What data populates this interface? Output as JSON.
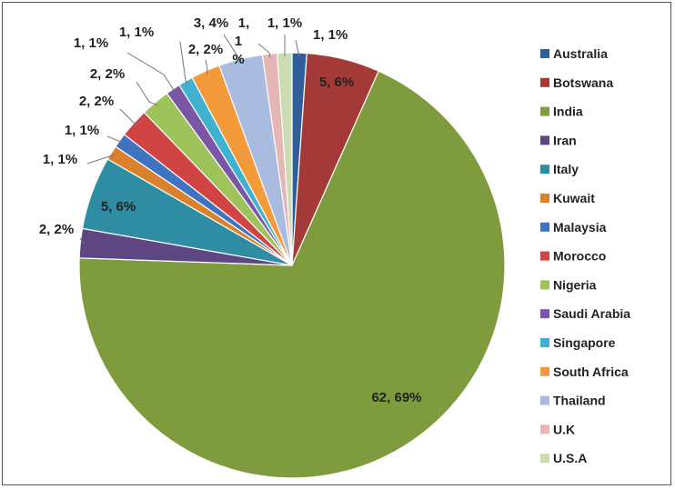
{
  "chart_data": {
    "type": "pie",
    "title": "",
    "legend_position": "right",
    "slices": [
      {
        "name": "Australia",
        "value": 1,
        "percent": "1%",
        "label": "1, 1%",
        "color": "#2E5F9A"
      },
      {
        "name": "Botswana",
        "value": 5,
        "percent": "6%",
        "label": "5, 6%",
        "color": "#A33A37"
      },
      {
        "name": "India",
        "value": 62,
        "percent": "69%",
        "label": "62, 69%",
        "color": "#7E9C3E"
      },
      {
        "name": "Iran",
        "value": 2,
        "percent": "2%",
        "label": "2, 2%",
        "color": "#5E4683"
      },
      {
        "name": "Italy",
        "value": 5,
        "percent": "6%",
        "label": "5, 6%",
        "color": "#2F8DA3"
      },
      {
        "name": "Kuwait",
        "value": 1,
        "percent": "1%",
        "label": "1, 1%",
        "color": "#D9822B"
      },
      {
        "name": "Malaysia",
        "value": 1,
        "percent": "1%",
        "label": "1, 1%",
        "color": "#3E73C2"
      },
      {
        "name": "Morocco",
        "value": 2,
        "percent": "2%",
        "label": "2, 2%",
        "color": "#D04543"
      },
      {
        "name": "Nigeria",
        "value": 2,
        "percent": "2%",
        "label": "2, 2%",
        "color": "#9DC35A"
      },
      {
        "name": "Saudi Arabia",
        "value": 1,
        "percent": "1%",
        "label": "1, 1%",
        "color": "#7C56A6"
      },
      {
        "name": "Singapore",
        "value": 1,
        "percent": "1%",
        "label": "1, 1%",
        "color": "#3FB2D0"
      },
      {
        "name": "South Africa",
        "value": 2,
        "percent": "2%",
        "label": "2, 2%",
        "color": "#F59A3A"
      },
      {
        "name": "Thailand",
        "value": 3,
        "percent": "4%",
        "label": "3, 4%",
        "color": "#A9BCE0"
      },
      {
        "name": "U.K",
        "value": 1,
        "percent": "1%",
        "label_lines": [
          "1,",
          "1",
          "%"
        ],
        "color": "#E6B5B5"
      },
      {
        "name": "U.S.A",
        "value": 1,
        "percent": "1%",
        "label": "1, 1%",
        "color": "#CBDDB0"
      }
    ]
  }
}
